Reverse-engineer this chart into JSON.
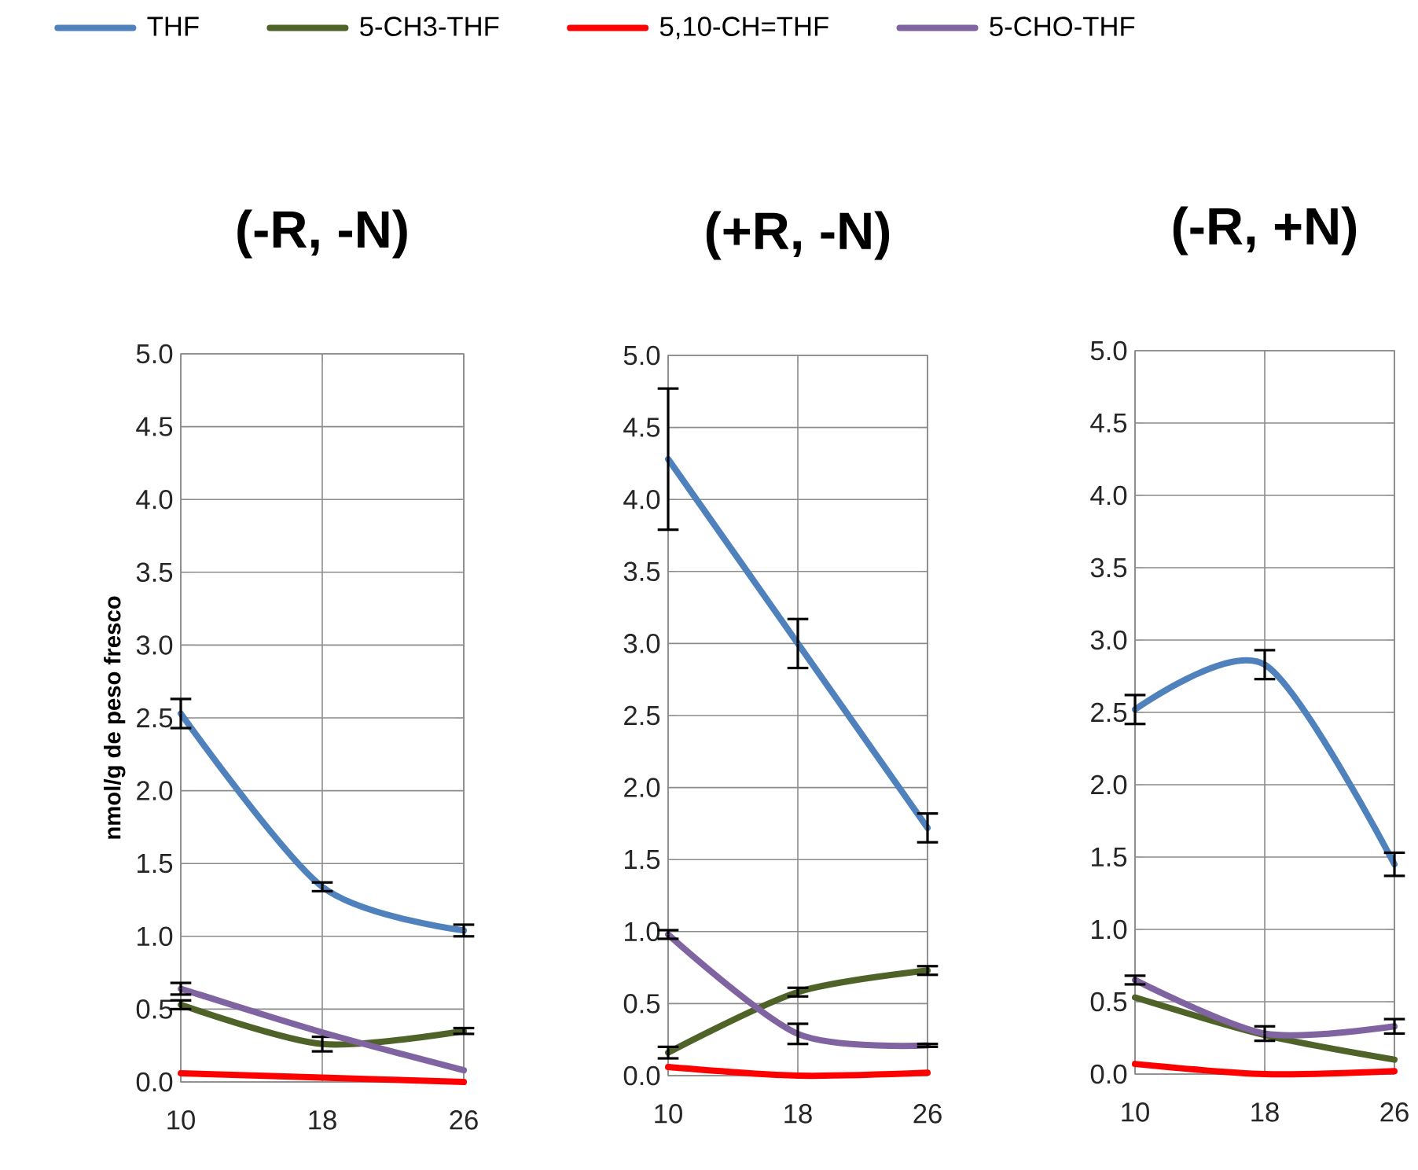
{
  "chart_data": [
    {
      "type": "line",
      "title": "(-R, -N)",
      "ylabel": "nmol/g de peso fresco",
      "x": [
        10,
        18,
        26
      ],
      "xlim": [
        10,
        26
      ],
      "xticks": [
        10,
        18,
        26
      ],
      "ylim": [
        0,
        5
      ],
      "yticks": [
        {
          "value": 0,
          "label": "0.0"
        },
        {
          "value": 0.5,
          "label": "0.5"
        },
        {
          "value": 1,
          "label": "1.0"
        },
        {
          "value": 1.5,
          "label": "1.5"
        },
        {
          "value": 2,
          "label": "2.0"
        },
        {
          "value": 2.5,
          "label": "2.5"
        },
        {
          "value": 3,
          "label": "3.0"
        },
        {
          "value": 3.5,
          "label": "3.5"
        },
        {
          "value": 4,
          "label": "4.0"
        },
        {
          "value": 4.5,
          "label": "4.5"
        },
        {
          "value": 5,
          "label": "5.0"
        }
      ],
      "grid": true,
      "legend": "top",
      "series": [
        {
          "name": "THF",
          "color": "#4f81bd",
          "values": [
            2.53,
            1.34,
            1.04
          ],
          "errors": [
            0.1,
            0.03,
            0.04
          ]
        },
        {
          "name": "5-CH3-THF",
          "color": "#4f6228",
          "values": [
            0.53,
            0.26,
            0.35
          ],
          "errors": [
            0.03,
            0.05,
            0.02
          ]
        },
        {
          "name": "5,10-CH=THF",
          "color": "#ff0000",
          "values": [
            0.06,
            0.03,
            0.0
          ]
        },
        {
          "name": "5-CHO-THF",
          "color": "#8064a2",
          "values": [
            0.64,
            0.34,
            0.08
          ],
          "errors": [
            0.04,
            null,
            null
          ]
        }
      ]
    },
    {
      "type": "line",
      "title": "(+R, -N)",
      "x": [
        10,
        18,
        26
      ],
      "xlim": [
        10,
        26
      ],
      "xticks": [
        10,
        18,
        26
      ],
      "ylim": [
        0,
        5
      ],
      "yticks": [
        {
          "value": 0,
          "label": "0.0"
        },
        {
          "value": 0.5,
          "label": "0.5"
        },
        {
          "value": 1,
          "label": "1.0"
        },
        {
          "value": 1.5,
          "label": "1.5"
        },
        {
          "value": 2,
          "label": "2.0"
        },
        {
          "value": 2.5,
          "label": "2.5"
        },
        {
          "value": 3,
          "label": "3.0"
        },
        {
          "value": 3.5,
          "label": "3.5"
        },
        {
          "value": 4,
          "label": "4.0"
        },
        {
          "value": 4.5,
          "label": "4.5"
        },
        {
          "value": 5,
          "label": "5.0"
        }
      ],
      "grid": true,
      "series": [
        {
          "color": "#4f81bd",
          "values": [
            4.28,
            3.0,
            1.72
          ],
          "errors": [
            0.49,
            0.17,
            0.1
          ]
        },
        {
          "color": "#4f6228",
          "values": [
            0.16,
            0.58,
            0.73
          ],
          "errors": [
            0.04,
            0.03,
            0.03
          ]
        },
        {
          "color": "#ff0000",
          "values": [
            0.06,
            0.0,
            0.02
          ]
        },
        {
          "color": "#8064a2",
          "values": [
            0.98,
            0.29,
            0.21
          ],
          "errors": [
            0.03,
            0.07,
            0.01
          ]
        }
      ]
    },
    {
      "type": "line",
      "title": "(-R, +N)",
      "x": [
        10,
        18,
        26
      ],
      "xlim": [
        10,
        26
      ],
      "xticks": [
        10,
        18,
        26
      ],
      "ylim": [
        0,
        5
      ],
      "yticks": [
        {
          "value": 0,
          "label": "0.0"
        },
        {
          "value": 0.5,
          "label": "0.5"
        },
        {
          "value": 1,
          "label": "1.0"
        },
        {
          "value": 1.5,
          "label": "1.5"
        },
        {
          "value": 2,
          "label": "2.0"
        },
        {
          "value": 2.5,
          "label": "2.5"
        },
        {
          "value": 3,
          "label": "3.0"
        },
        {
          "value": 3.5,
          "label": "3.5"
        },
        {
          "value": 4,
          "label": "4.0"
        },
        {
          "value": 4.5,
          "label": "4.5"
        },
        {
          "value": 5,
          "label": "5.0"
        }
      ],
      "grid": true,
      "series": [
        {
          "color": "#4f81bd",
          "values": [
            2.52,
            2.83,
            1.45
          ],
          "errors": [
            0.1,
            0.1,
            0.08
          ]
        },
        {
          "color": "#4f6228",
          "values": [
            0.53,
            0.27,
            0.1
          ]
        },
        {
          "color": "#ff0000",
          "values": [
            0.07,
            0.0,
            0.02
          ]
        },
        {
          "color": "#8064a2",
          "values": [
            0.65,
            0.28,
            0.33
          ],
          "errors": [
            0.03,
            0.05,
            0.05
          ]
        }
      ]
    }
  ]
}
